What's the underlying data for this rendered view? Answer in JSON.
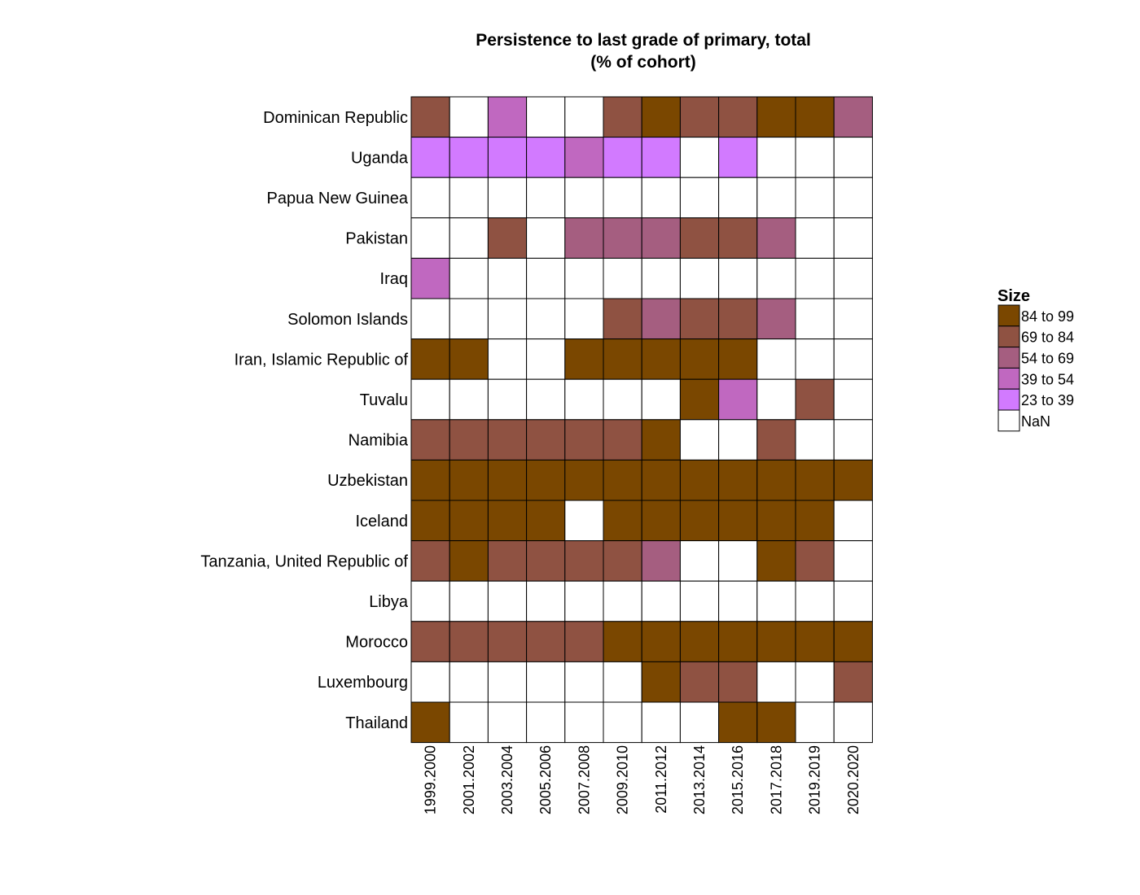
{
  "chart_data": {
    "type": "heatmap",
    "title": [
      "Persistence to last grade of primary, total",
      "(% of cohort)"
    ],
    "xlabel": "",
    "ylabel": "",
    "legend_position": "right",
    "categories_x": [
      "1999.2000",
      "2001.2002",
      "2003.2004",
      "2005.2006",
      "2007.2008",
      "2009.2010",
      "2011.2012",
      "2013.2014",
      "2015.2016",
      "2017.2018",
      "2019.2019",
      "2020.2020"
    ],
    "categories_y": [
      "Dominican Republic",
      "Uganda",
      "Papua New Guinea",
      "Pakistan",
      "Iraq",
      "Solomon Islands",
      "Iran, Islamic Republic of",
      "Tuvalu",
      "Namibia",
      "Uzbekistan",
      "Iceland",
      "Tanzania, United Republic of",
      "Libya",
      "Morocco",
      "Luxembourg",
      "Thailand"
    ],
    "legend": {
      "title": "Size",
      "bins": [
        {
          "from": "84",
          "to": "99",
          "color": "#7a4700"
        },
        {
          "from": "69",
          "to": "84",
          "color": "#8f5242"
        },
        {
          "from": "54",
          "to": "69",
          "color": "#a55e80"
        },
        {
          "from": "39",
          "to": "54",
          "color": "#c068c0"
        },
        {
          "from": "23",
          "to": "39",
          "color": "#d27aff"
        }
      ],
      "nan_label": "NaN",
      "nan_color": "#ffffff",
      "to_word": "to"
    },
    "bin_matrix": [
      [
        1,
        null,
        3,
        null,
        null,
        1,
        0,
        1,
        1,
        0,
        0,
        2
      ],
      [
        4,
        4,
        4,
        4,
        3,
        4,
        4,
        null,
        4,
        null,
        null,
        null
      ],
      [
        null,
        null,
        null,
        null,
        null,
        null,
        null,
        null,
        null,
        null,
        null,
        null
      ],
      [
        null,
        null,
        1,
        null,
        2,
        2,
        2,
        1,
        1,
        2,
        null,
        null
      ],
      [
        3,
        null,
        null,
        null,
        null,
        null,
        null,
        null,
        null,
        null,
        null,
        null
      ],
      [
        null,
        null,
        null,
        null,
        null,
        1,
        2,
        1,
        1,
        2,
        null,
        null
      ],
      [
        0,
        0,
        null,
        null,
        0,
        0,
        0,
        0,
        0,
        null,
        null,
        null
      ],
      [
        null,
        null,
        null,
        null,
        null,
        null,
        null,
        0,
        3,
        null,
        1,
        null
      ],
      [
        1,
        1,
        1,
        1,
        1,
        1,
        0,
        null,
        null,
        1,
        null,
        null
      ],
      [
        0,
        0,
        0,
        0,
        0,
        0,
        0,
        0,
        0,
        0,
        0,
        0
      ],
      [
        0,
        0,
        0,
        0,
        null,
        0,
        0,
        0,
        0,
        0,
        0,
        null
      ],
      [
        1,
        0,
        1,
        1,
        1,
        1,
        2,
        null,
        null,
        0,
        1,
        null
      ],
      [
        null,
        null,
        null,
        null,
        null,
        null,
        null,
        null,
        null,
        null,
        null,
        null
      ],
      [
        1,
        1,
        1,
        1,
        1,
        0,
        0,
        0,
        0,
        0,
        0,
        0
      ],
      [
        null,
        null,
        null,
        null,
        null,
        null,
        0,
        1,
        1,
        null,
        null,
        1
      ],
      [
        0,
        null,
        null,
        null,
        null,
        null,
        null,
        null,
        0,
        0,
        null,
        null
      ]
    ]
  }
}
